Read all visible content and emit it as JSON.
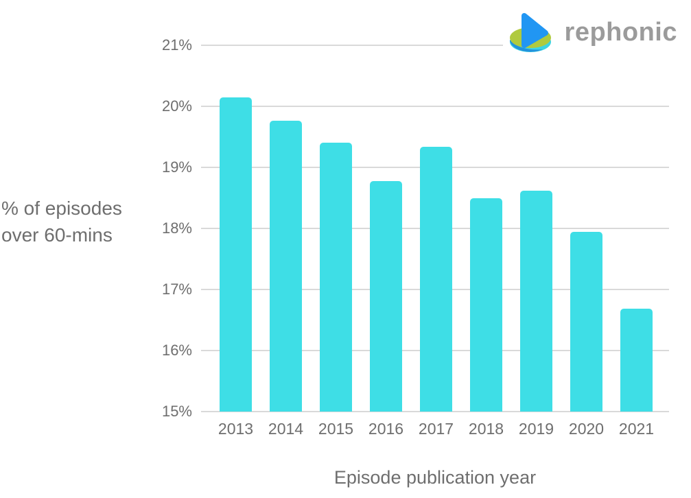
{
  "brand": {
    "name": "rephonic",
    "text_color": "#9b9b9b"
  },
  "chart_data": {
    "type": "bar",
    "categories": [
      "2013",
      "2014",
      "2015",
      "2016",
      "2017",
      "2018",
      "2019",
      "2020",
      "2021"
    ],
    "values": [
      20.15,
      19.76,
      19.41,
      18.78,
      19.34,
      18.49,
      18.62,
      17.94,
      16.68
    ],
    "title": "",
    "xlabel": "Episode publication year",
    "ylabel_lines": [
      "% of episodes",
      "over 60-mins"
    ],
    "ylim": [
      15,
      21
    ],
    "ytick_step": 1,
    "ytick_labels": [
      "15%",
      "16%",
      "17%",
      "18%",
      "19%",
      "20%",
      "21%"
    ],
    "legend": "none",
    "grid": "horizontal",
    "bar_color": "#3edee6",
    "grid_color": "#d9d9d9",
    "label_color": "#6e6e6e"
  }
}
